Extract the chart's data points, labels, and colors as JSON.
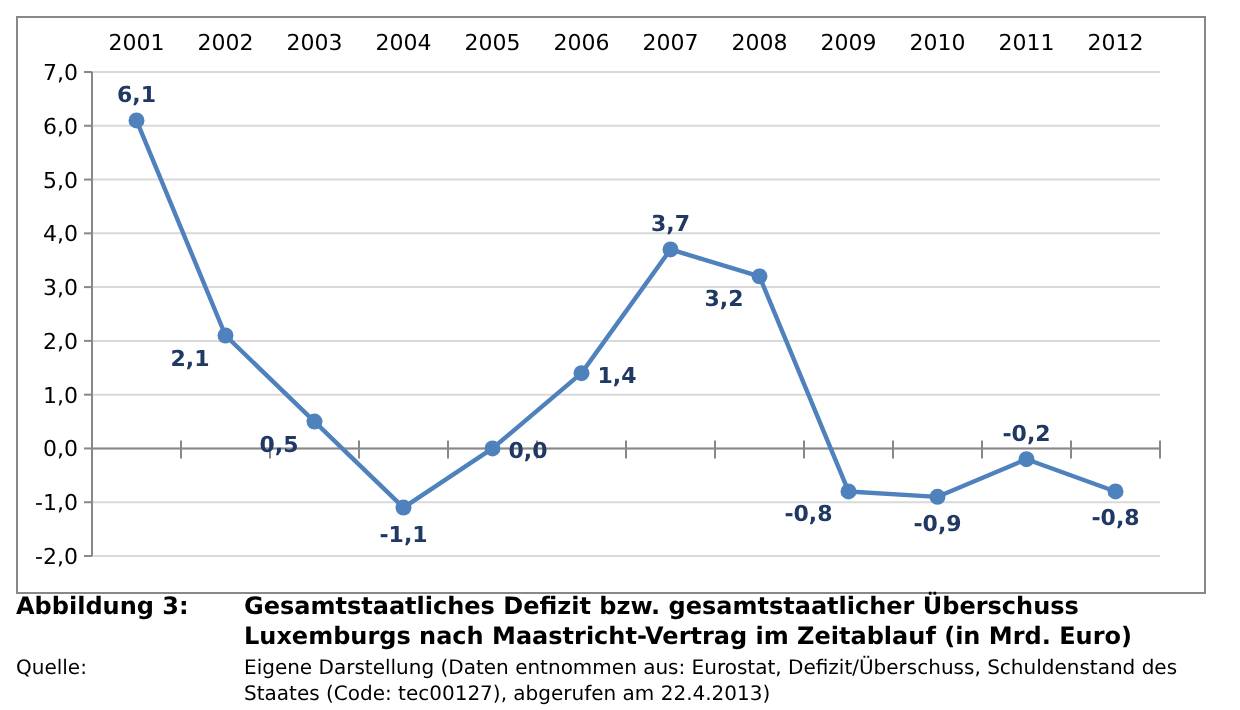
{
  "chart_data": {
    "type": "line",
    "title": "Gesamtstaatliches Defizit bzw. gesamtstaatlicher Überschuss Luxemburgs nach Maastricht-Vertrag im Zeitablauf (in Mrd. Euro)",
    "annotations": [
      "Abbildung 3:",
      "Quelle:",
      "Eigene Darstellung (Daten entnommen aus: Eurostat, Defizit/Überschuss, Schuldenstand des Staates (Code: tec00127), abgerufen am 22.4.2013)"
    ],
    "categories": [
      "2001",
      "2002",
      "2003",
      "2004",
      "2005",
      "2006",
      "2007",
      "2008",
      "2009",
      "2010",
      "2011",
      "2012"
    ],
    "series": [
      {
        "color": "#4f81bd",
        "values": [
          6.1,
          2.1,
          0.5,
          -1.1,
          0.0,
          1.4,
          3.7,
          3.2,
          -0.8,
          -0.9,
          -0.2,
          -0.8
        ],
        "value_labels": [
          "6,1",
          "2,1",
          "0,5",
          "-1,1",
          "0,0",
          "1,4",
          "3,7",
          "3,2",
          "-0,8",
          "-0,9",
          "-0,2",
          "-0,8"
        ]
      }
    ],
    "ylim": [
      -2,
      7
    ],
    "yticks": [
      {
        "value": -2,
        "label": "-2,0"
      },
      {
        "value": -1,
        "label": "-1,0"
      },
      {
        "value": 0,
        "label": "0,0"
      },
      {
        "value": 1,
        "label": "1,0"
      },
      {
        "value": 2,
        "label": "2,0"
      },
      {
        "value": 3,
        "label": "3,0"
      },
      {
        "value": 4,
        "label": "4,0"
      },
      {
        "value": 5,
        "label": "5,0"
      },
      {
        "value": 6,
        "label": "6,0"
      },
      {
        "value": 7,
        "label": "7,0"
      }
    ],
    "grid": "y",
    "marker": "circle",
    "line_style": "solid"
  }
}
